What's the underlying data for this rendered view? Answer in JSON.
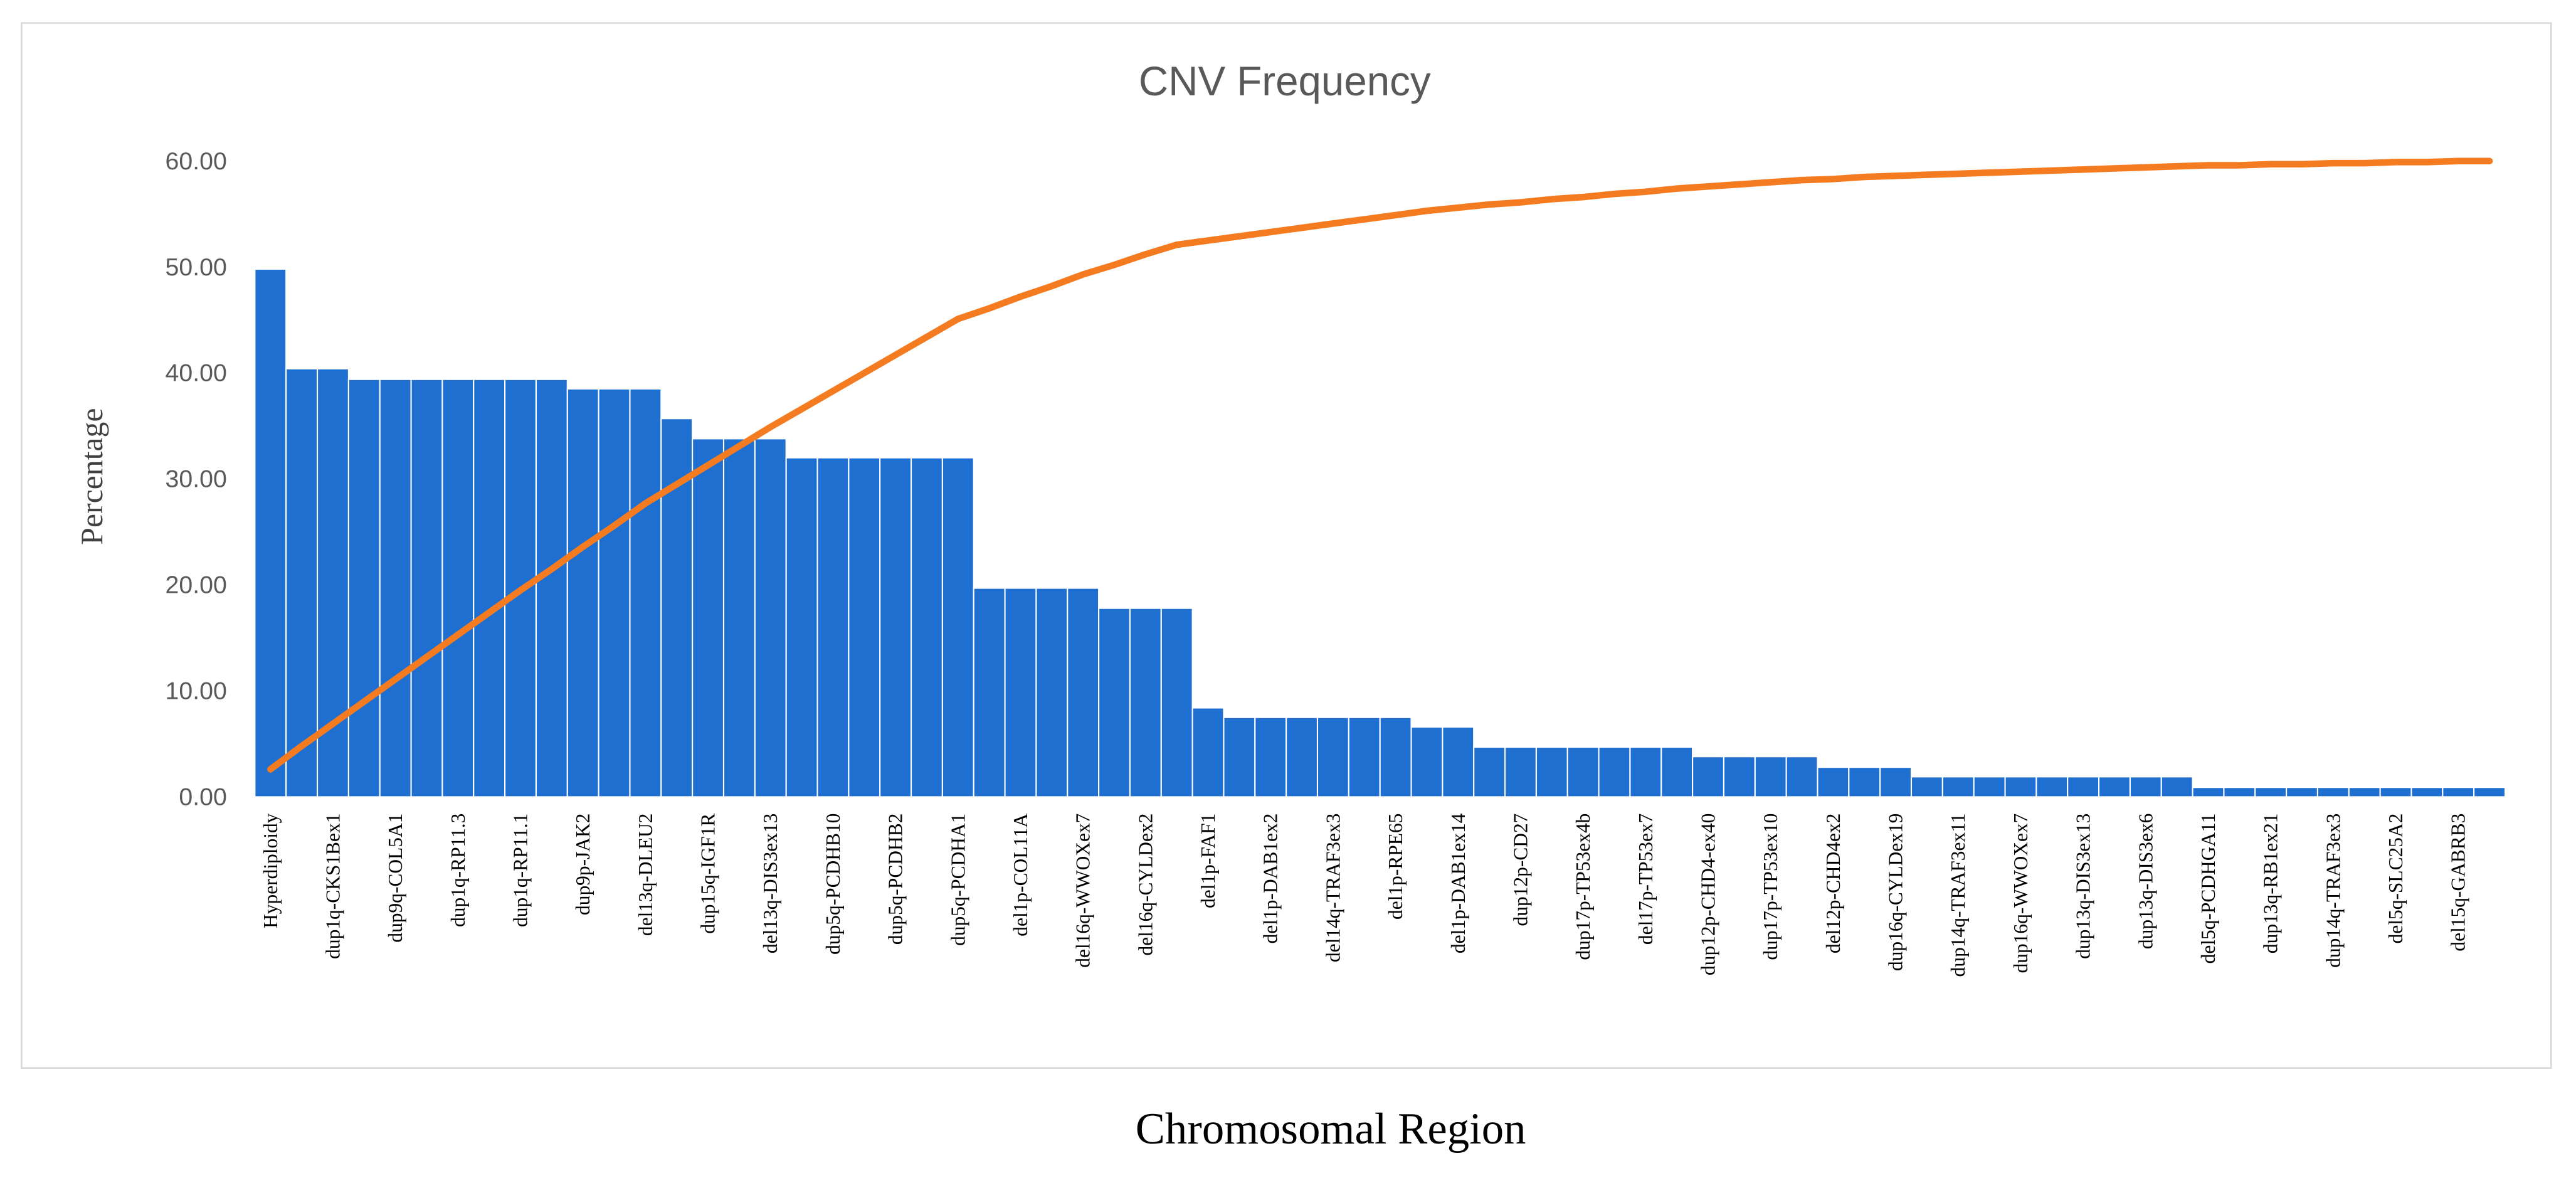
{
  "chart_data": {
    "type": "combo",
    "title": "CNV Frequency",
    "y_label": "Percentage",
    "x_label": "Chromosomal Region",
    "categories": [
      "Hyperdiploidy",
      null,
      "dup1q-CKS1Bex1",
      null,
      "dup9q-COL5A1",
      null,
      "dup1q-RP11.3",
      null,
      "dup1q-RP11.1",
      null,
      "dup9p-JAK2",
      null,
      "del13q-DLEU2",
      null,
      "dup15q-IGF1R",
      null,
      "del13q-DIS3ex13",
      null,
      "dup5q-PCDHB10",
      null,
      "dup5q-PCDHB2",
      null,
      "dup5q-PCDHA1",
      null,
      "del1p-COL11A",
      null,
      "del16q-WWOXex7",
      null,
      "del16q-CYLDex2",
      null,
      "del1p-FAF1",
      null,
      "del1p-DAB1ex2",
      null,
      "del14q-TRAF3ex3",
      null,
      "del1p-RPE65",
      null,
      "del1p-DAB1ex14",
      null,
      "dup12p-CD27",
      null,
      "dup17p-TP53ex4b",
      null,
      "del17p-TP53ex7",
      null,
      "dup12p-CHD4-ex40",
      null,
      "dup17p-TP53ex10",
      null,
      "del12p-CHD4ex2",
      null,
      "dup16q-CYLDex19",
      null,
      "dup14q-TRAF3ex11",
      null,
      "dup16q-WWOXex7",
      null,
      "dup13q-DIS3ex13",
      null,
      "dup13q-DIS3ex6",
      null,
      "del5q-PCDHGA11",
      null,
      "dup13q-RB1ex21",
      null,
      "dup14q-TRAF3ex3",
      null,
      "del5q-SLC25A2",
      null,
      "del15q-GABRB3",
      null
    ],
    "series": [
      {
        "type": "bar",
        "color": "#1f6fd0",
        "values": [
          49.8,
          40.4,
          40.4,
          39.4,
          39.4,
          39.4,
          39.4,
          39.4,
          39.4,
          39.4,
          38.5,
          38.5,
          38.5,
          35.7,
          33.8,
          33.8,
          33.8,
          32.0,
          32.0,
          32.0,
          32.0,
          32.0,
          32.0,
          19.7,
          19.7,
          19.7,
          19.7,
          17.8,
          17.8,
          17.8,
          8.4,
          7.5,
          7.5,
          7.5,
          7.5,
          7.5,
          7.5,
          6.6,
          6.6,
          4.7,
          4.7,
          4.7,
          4.7,
          4.7,
          4.7,
          4.7,
          3.8,
          3.8,
          3.8,
          3.8,
          2.8,
          2.8,
          2.8,
          1.9,
          1.9,
          1.9,
          1.9,
          1.9,
          1.9,
          1.9,
          1.9,
          1.9,
          0.9,
          0.9,
          0.9,
          0.9,
          0.9,
          0.9,
          0.9,
          0.9,
          0.9,
          0.9
        ]
      },
      {
        "type": "line",
        "color": "#f47b20",
        "values": [
          2.6,
          4.8,
          6.9,
          9.0,
          11.1,
          13.2,
          15.3,
          17.4,
          19.5,
          21.5,
          23.6,
          25.6,
          27.7,
          29.5,
          31.3,
          33.1,
          34.9,
          36.6,
          38.3,
          40.0,
          41.7,
          43.4,
          45.1,
          46.1,
          47.2,
          48.2,
          49.3,
          50.2,
          51.2,
          52.1,
          52.5,
          52.9,
          53.3,
          53.7,
          54.1,
          54.5,
          54.9,
          55.3,
          55.6,
          55.9,
          56.1,
          56.4,
          56.6,
          56.9,
          57.1,
          57.4,
          57.6,
          57.8,
          58.0,
          58.2,
          58.3,
          58.5,
          58.6,
          58.7,
          58.8,
          58.9,
          59.0,
          59.1,
          59.2,
          59.3,
          59.4,
          59.5,
          59.6,
          59.6,
          59.7,
          59.7,
          59.8,
          59.8,
          59.9,
          59.9,
          60.0,
          60.0
        ]
      }
    ],
    "ylim": [
      0,
      60
    ],
    "yticks": [
      {
        "value": 0,
        "label": "0.00"
      },
      {
        "value": 10,
        "label": "10.00"
      },
      {
        "value": 20,
        "label": "20.00"
      },
      {
        "value": 30,
        "label": "30.00"
      },
      {
        "value": 40,
        "label": "40.00"
      },
      {
        "value": 50,
        "label": "50.00"
      },
      {
        "value": 60,
        "label": "60.00"
      }
    ],
    "grid": false
  }
}
